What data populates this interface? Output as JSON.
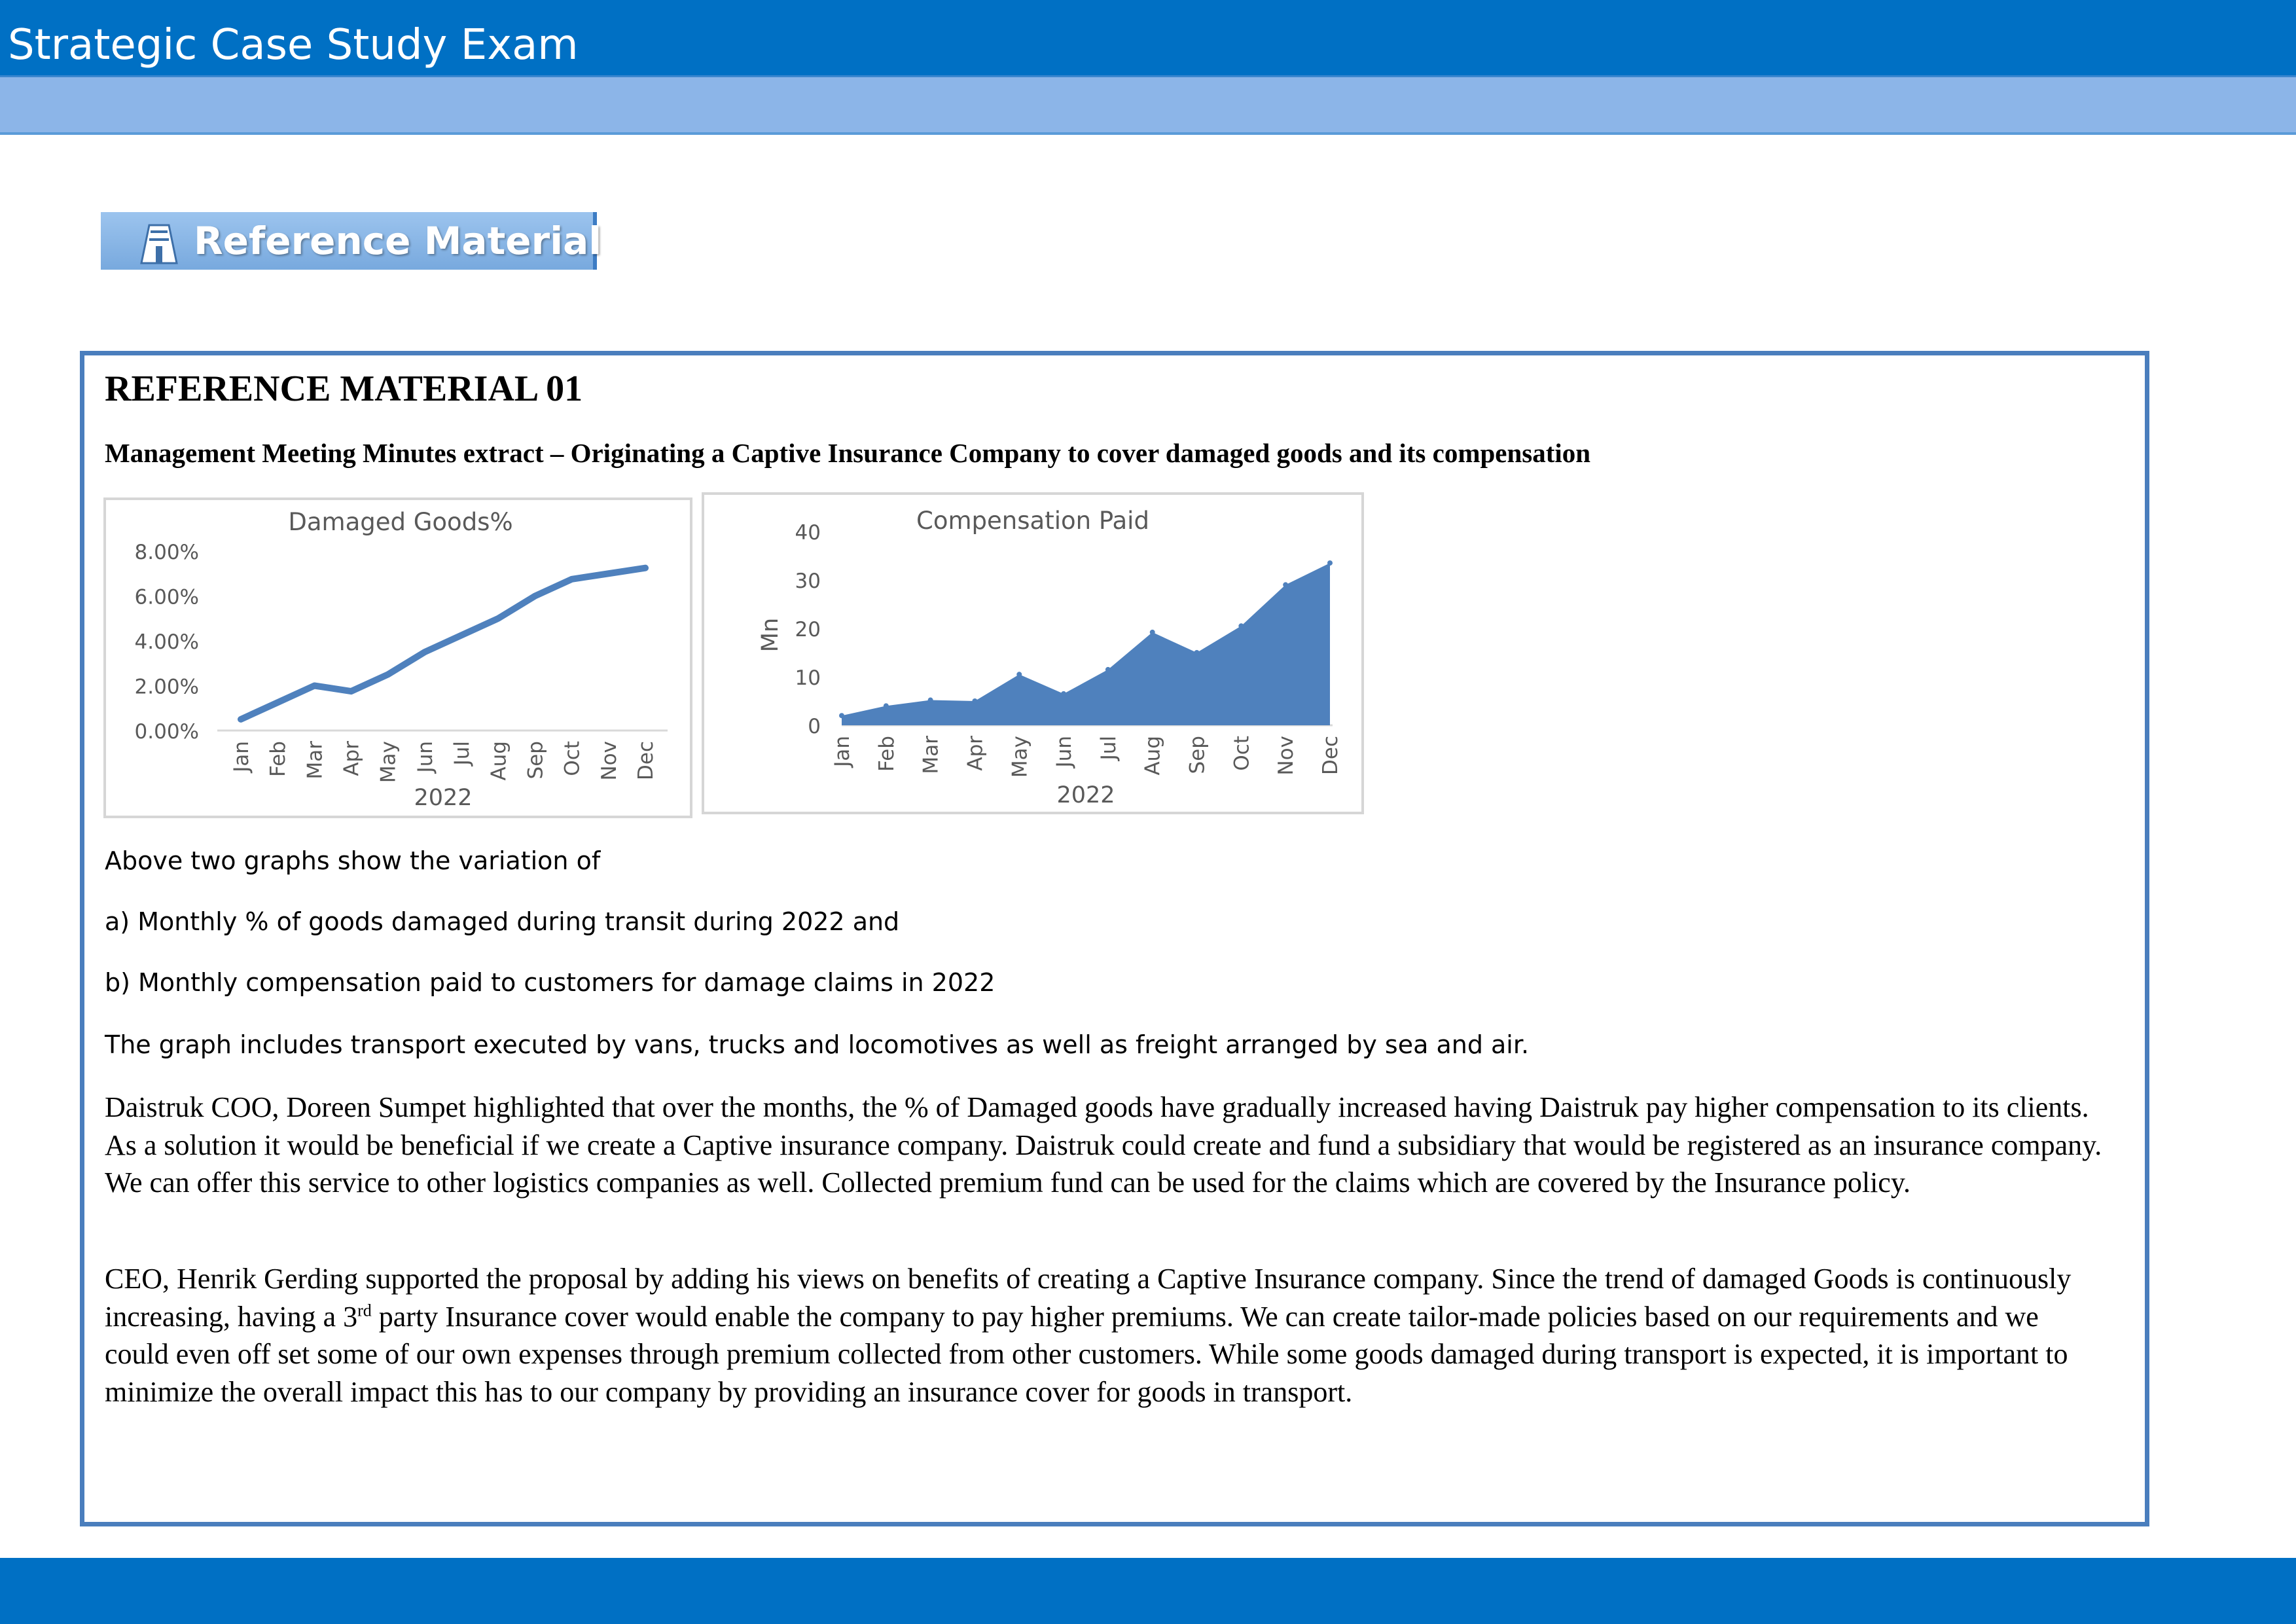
{
  "header": {
    "title": "Strategic Case Study Exam"
  },
  "reference_button": {
    "label": "Reference Material",
    "icon": "book-stand-icon"
  },
  "reference": {
    "heading": "REFERENCE MATERIAL 01",
    "subheading": "Management Meeting Minutes extract – Originating a Captive Insurance Company to cover damaged goods and its compensation",
    "intro": "Above two graphs show the variation of",
    "item_a": "a) Monthly % of goods damaged during transit during 2022  and",
    "item_b": "b) Monthly compensation paid to customers for damage claims in 2022",
    "transport_note": "The graph includes transport executed by vans, trucks and locomotives as well as freight arranged by sea and air.",
    "coo_paragraph": "Daistruk COO, Doreen Sumpet highlighted that over the months, the % of Damaged goods have gradually increased having Daistruk pay higher compensation to its clients. As a solution it would be beneficial if we create a Captive insurance company. Daistruk could create and fund a subsidiary that would be registered as an insurance company. We can offer this service to other logistics companies as well. Collected premium fund can be used for the claims which are covered by the Insurance policy.",
    "ceo_paragraph_before": "CEO, Henrik Gerding supported the proposal by adding his views on benefits of creating a Captive Insurance company. Since the trend of damaged Goods is continuously increasing, having a 3",
    "ceo_paragraph_sup": "rd",
    "ceo_paragraph_after": " party Insurance cover would enable the company to pay higher premiums. We can create tailor-made policies based on our requirements and we could even off set some of our own expenses through premium collected from other customers. While some goods damaged during transport is expected, it is important to minimize the overall impact this has to our company by providing an insurance cover for goods in transport."
  },
  "chart_data": [
    {
      "type": "line",
      "title": "Damaged Goods%",
      "xlabel": "2022",
      "ylabel": "",
      "categories": [
        "Jan",
        "Feb",
        "Mar",
        "Apr",
        "May",
        "Jun",
        "Jul",
        "Aug",
        "Sep",
        "Oct",
        "Nov",
        "Dec"
      ],
      "values": [
        0.5,
        1.25,
        2.0,
        1.75,
        2.5,
        3.5,
        4.25,
        5.0,
        6.0,
        6.75,
        7.0,
        7.25
      ],
      "yticks": [
        "0.00%",
        "2.00%",
        "4.00%",
        "6.00%",
        "8.00%"
      ],
      "ylim": [
        0,
        8
      ],
      "grid": false,
      "color": "#4f81bd"
    },
    {
      "type": "area",
      "title": "Compensation Paid",
      "xlabel": "2022",
      "ylabel": "Mn",
      "categories": [
        "Jan",
        "Feb",
        "Mar",
        "Apr",
        "May",
        "Jun",
        "Jul",
        "Aug",
        "Sep",
        "Oct",
        "Nov",
        "Dec"
      ],
      "values": [
        2,
        4,
        5.2,
        5,
        10.5,
        6.5,
        11.5,
        19.2,
        15,
        20.5,
        29,
        33.5
      ],
      "yticks": [
        "0",
        "10",
        "20",
        "30",
        "40"
      ],
      "ylim": [
        0,
        40
      ],
      "grid": false,
      "color": "#4f81bd"
    }
  ]
}
